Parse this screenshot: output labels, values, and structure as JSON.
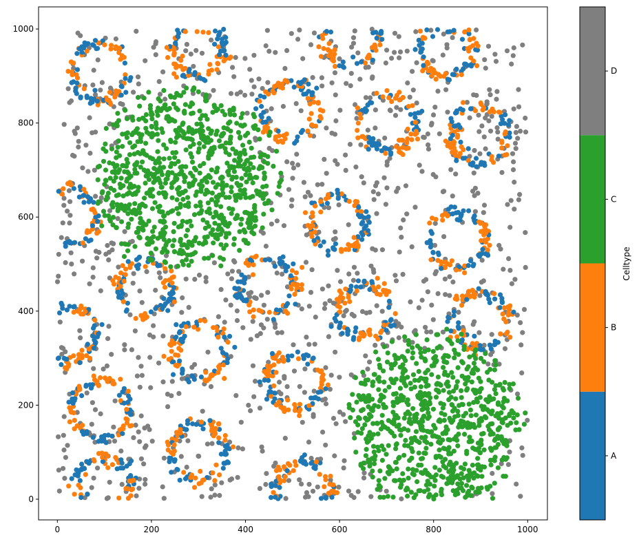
{
  "chart_data": {
    "type": "scatter",
    "title": "",
    "xlabel": "",
    "ylabel": "",
    "xlim": [
      -40,
      1042
    ],
    "ylim": [
      -44,
      1047
    ],
    "xticks": [
      0,
      200,
      400,
      600,
      800,
      1000
    ],
    "yticks": [
      0,
      200,
      400,
      600,
      800,
      1000
    ],
    "grid": false,
    "colorbar": {
      "label": "Celltype",
      "categories": [
        "A",
        "B",
        "C",
        "D"
      ],
      "colors": {
        "A": "#1f77b4",
        "B": "#ff7f0e",
        "C": "#2ca02c",
        "D": "#7f7f7f"
      }
    },
    "clusters": {
      "rings_AB": [
        {
          "x": 91,
          "y": 908,
          "r": 60
        },
        {
          "x": 300,
          "y": 952,
          "r": 55
        },
        {
          "x": 493,
          "y": 827,
          "r": 60
        },
        {
          "x": 703,
          "y": 801,
          "r": 60
        },
        {
          "x": 827,
          "y": 952,
          "r": 55
        },
        {
          "x": 899,
          "y": 776,
          "r": 60
        },
        {
          "x": 596,
          "y": 586,
          "r": 58
        },
        {
          "x": 852,
          "y": 552,
          "r": 60
        },
        {
          "x": 446,
          "y": 454,
          "r": 60
        },
        {
          "x": 186,
          "y": 447,
          "r": 58
        },
        {
          "x": 654,
          "y": 403,
          "r": 58
        },
        {
          "x": 900,
          "y": 381,
          "r": 60
        },
        {
          "x": 303,
          "y": 315,
          "r": 58
        },
        {
          "x": 505,
          "y": 249,
          "r": 60
        },
        {
          "x": 91,
          "y": 190,
          "r": 62
        },
        {
          "x": 300,
          "y": 102,
          "r": 60
        },
        {
          "x": 98,
          "y": 30,
          "r": 58
        },
        {
          "x": 523,
          "y": 20,
          "r": 60
        },
        {
          "x": 625,
          "y": 985,
          "r": 60
        },
        {
          "x": 20,
          "y": 600,
          "r": 60
        },
        {
          "x": 25,
          "y": 350,
          "r": 60
        }
      ],
      "blobs_C": [
        {
          "x": 274,
          "y": 680,
          "r": 185,
          "n": 850
        },
        {
          "x": 800,
          "y": 160,
          "r": 180,
          "n": 800
        }
      ],
      "background_D": {
        "n": 1150,
        "x": [
          0,
          1000
        ],
        "y": [
          0,
          1000
        ]
      }
    }
  }
}
